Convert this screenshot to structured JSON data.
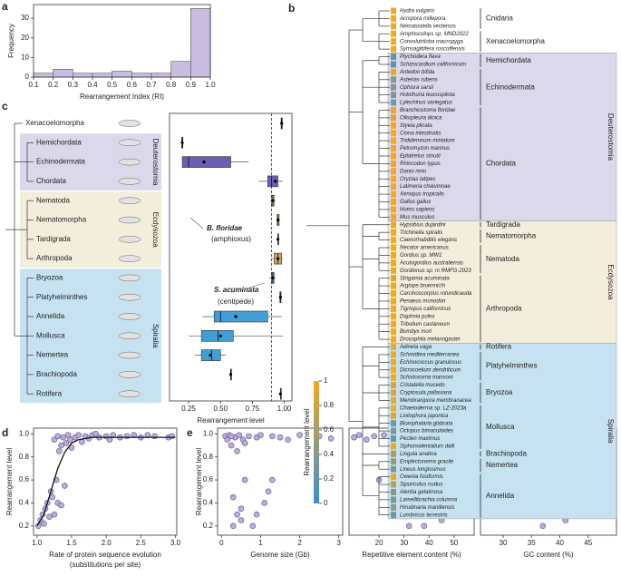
{
  "chart_data": [
    {
      "type": "histogram",
      "label": "a",
      "xlabel": "Rearrangement Index (RI)",
      "ylabel": "Frequency",
      "color": "#c8bde0",
      "bins": [
        0.1,
        0.2,
        0.3,
        0.4,
        0.5,
        0.6,
        0.7,
        0.8,
        0.9,
        1.0
      ],
      "counts": [
        2,
        4,
        2,
        2,
        3,
        2,
        2,
        8,
        35
      ],
      "xlim": [
        0.1,
        1.0
      ],
      "ylim": [
        0,
        37
      ],
      "xticks": [
        0.1,
        0.2,
        0.3,
        0.4,
        0.5,
        0.6,
        0.7,
        0.8,
        0.9,
        {
          "value": 1.0,
          "label": "1.0"
        }
      ],
      "yticks": [
        0,
        10,
        20,
        30
      ]
    },
    {
      "type": "box",
      "label": "c",
      "xlabel": "Rearrangement level",
      "xlim": [
        0.1,
        1.06
      ],
      "xticks": [
        {
          "value": 0.25,
          "label": "0.25"
        },
        {
          "value": 0.5,
          "label": "0.50"
        },
        {
          "value": 0.75,
          "label": "0.75"
        },
        {
          "value": 1.0,
          "label": "1.00"
        }
      ],
      "reference_line": 0.9,
      "annotations": [
        "B. floridae",
        "(amphioxus)",
        "S. acuminata",
        "(centipede)"
      ],
      "series": [
        {
          "name": null,
          "color": "#444444",
          "categories": [
            "Xenacoelomorpha"
          ],
          "min": [
            0.97
          ],
          "q1": [
            0.975
          ],
          "median": [
            0.98
          ],
          "q3": [
            0.985
          ],
          "max": [
            0.99
          ],
          "mean": [
            0.98
          ]
        },
        {
          "name": "Deuterostomia",
          "color": "#6a5fb0",
          "background": "#dcd8ec",
          "categories": [
            "Hemichordata",
            "Echinodermata",
            "Chordata"
          ],
          "min": [
            0.19,
            0.2,
            0.8
          ],
          "q1": [
            0.195,
            0.2,
            0.87
          ],
          "median": [
            0.2,
            0.25,
            0.9
          ],
          "q3": [
            0.205,
            0.58,
            0.95
          ],
          "max": [
            0.21,
            0.72,
            0.99
          ],
          "mean": [
            0.2,
            0.37,
            0.93
          ]
        },
        {
          "name": "Ecdysozoa",
          "color": "#c9a85c",
          "background": "#f3eedc",
          "categories": [
            "Nematoda",
            "Nematomorpha",
            "Tardigrada",
            "Arthropoda"
          ],
          "min": [
            0.89,
            0.94,
            0.95,
            0.9
          ],
          "q1": [
            0.9,
            0.945,
            0.95,
            0.92
          ],
          "median": [
            0.91,
            0.95,
            0.95,
            0.95
          ],
          "q3": [
            0.92,
            0.96,
            0.95,
            0.98
          ],
          "max": [
            0.93,
            0.965,
            0.95,
            0.99
          ],
          "mean": [
            0.91,
            0.95,
            0.95,
            0.95
          ]
        },
        {
          "name": "Spiralia",
          "color": "#3f9fd6",
          "background": "#c6e2f1",
          "categories": [
            "Bryozoa",
            "Platyhelminthes",
            "Annelida",
            "Mollusca",
            "Nemertea",
            "Brachiopoda",
            "Rotifera"
          ],
          "min": [
            0.88,
            0.96,
            0.36,
            0.25,
            0.3,
            0.58,
            0.97
          ],
          "q1": [
            0.9,
            0.965,
            0.45,
            0.35,
            0.35,
            0.58,
            0.97
          ],
          "median": [
            0.91,
            0.97,
            0.5,
            0.48,
            0.43,
            0.58,
            0.97
          ],
          "q3": [
            0.92,
            0.975,
            0.87,
            0.6,
            0.5,
            0.58,
            0.97
          ],
          "max": [
            0.93,
            0.98,
            0.98,
            0.99,
            0.54,
            0.58,
            0.97
          ],
          "mean": [
            0.91,
            0.97,
            0.62,
            0.5,
            0.42,
            0.58,
            0.97
          ]
        }
      ]
    },
    {
      "type": "scatter",
      "label": "d",
      "xlabel": [
        "Rate of protein sequence evolution",
        "(substitutions per site)"
      ],
      "ylabel": "Rearrangement level",
      "color": "#b9addb",
      "x": [
        1.02,
        1.05,
        1.08,
        1.1,
        1.12,
        1.15,
        1.18,
        1.2,
        1.22,
        1.25,
        1.25,
        1.28,
        1.3,
        1.3,
        1.32,
        1.35,
        1.35,
        1.38,
        1.4,
        1.42,
        1.45,
        1.48,
        1.5,
        1.55,
        1.6,
        1.65,
        1.7,
        1.75,
        1.8,
        1.85,
        1.9,
        2.0,
        2.05,
        2.1,
        2.2,
        2.3,
        2.4,
        2.5,
        2.6,
        2.7,
        2.9,
        2.95
      ],
      "y": [
        0.2,
        0.25,
        0.3,
        0.22,
        0.35,
        0.4,
        0.28,
        0.5,
        0.45,
        0.3,
        0.95,
        0.6,
        0.98,
        0.4,
        0.85,
        0.9,
        0.38,
        0.97,
        0.55,
        0.92,
        0.99,
        0.95,
        0.88,
        0.97,
        0.99,
        0.93,
        0.98,
        0.96,
        0.99,
        1.0,
        0.97,
        0.98,
        0.95,
        0.99,
        0.97,
        0.98,
        0.99,
        0.97,
        0.99,
        0.98,
        0.97,
        0.98
      ],
      "fit_x": [
        1.0,
        1.1,
        1.2,
        1.3,
        1.4,
        1.5,
        1.6,
        1.8,
        2.0,
        2.5,
        3.0
      ],
      "fit_y": [
        0.2,
        0.3,
        0.5,
        0.7,
        0.84,
        0.92,
        0.95,
        0.97,
        0.97,
        0.97,
        0.97
      ],
      "xlim": [
        0.95,
        3.02
      ],
      "ylim": [
        0.12,
        1.05
      ],
      "xticks": [
        {
          "value": 1.0,
          "label": "1.0"
        },
        1.5,
        {
          "value": 2.0,
          "label": "2.0"
        },
        2.5,
        {
          "value": 3.0,
          "label": "3.0"
        }
      ],
      "yticks": [
        0.2,
        0.4,
        0.6,
        0.8,
        {
          "value": 1.0,
          "label": "1.0"
        }
      ]
    },
    {
      "type": "scatter",
      "label": "e",
      "xlabel": "Genome size (Gb)",
      "ylabel": "Rearrangement level",
      "color": "#b9addb",
      "x": [
        0.1,
        0.15,
        0.2,
        0.25,
        0.3,
        0.35,
        0.4,
        0.45,
        0.5,
        0.55,
        0.6,
        0.7,
        0.8,
        0.9,
        1.0,
        1.1,
        1.2,
        1.3,
        1.5,
        1.7,
        2.0,
        2.5,
        2.8,
        0.3,
        0.5,
        0.6,
        0.9,
        1.3,
        0.25,
        0.4
      ],
      "y": [
        0.98,
        0.95,
        0.99,
        0.9,
        0.2,
        0.97,
        0.3,
        0.99,
        0.25,
        0.95,
        0.6,
        0.98,
        0.2,
        0.97,
        0.99,
        0.4,
        0.5,
        0.98,
        0.97,
        0.95,
        0.99,
        0.98,
        0.96,
        0.45,
        0.35,
        0.92,
        0.3,
        0.6,
        0.98,
        0.85
      ],
      "xlim": [
        -0.1,
        3.1
      ],
      "ylim": [
        0.12,
        1.05
      ],
      "xticks": [
        0,
        1,
        2,
        3
      ],
      "yticks": [
        0.2,
        0.4,
        0.6,
        0.8,
        {
          "value": 1.0,
          "label": "1.0"
        }
      ]
    },
    {
      "type": "scatter",
      "xlabel": "Repetitive element content (%)",
      "color": "#b9addb",
      "x": [
        10,
        12,
        15,
        18,
        20,
        22,
        25,
        27,
        28,
        30,
        32,
        33,
        35,
        36,
        38,
        40,
        42,
        44,
        45,
        47,
        50,
        52,
        55,
        30,
        35,
        40,
        45,
        48,
        25,
        38
      ],
      "y": [
        0.97,
        0.99,
        0.95,
        0.98,
        0.6,
        0.99,
        0.97,
        0.3,
        0.99,
        0.96,
        0.2,
        0.98,
        0.5,
        0.99,
        0.97,
        0.4,
        0.95,
        0.99,
        0.25,
        0.97,
        0.7,
        0.98,
        0.99,
        0.99,
        0.85,
        0.3,
        0.98,
        0.55,
        0.98,
        0.2
      ],
      "xlim": [
        8,
        58
      ],
      "ylim": [
        0.12,
        1.05
      ],
      "xticks": [
        20,
        30,
        40,
        50
      ]
    },
    {
      "type": "scatter",
      "xlabel": "GC content (%)",
      "color": "#b9addb",
      "x": [
        28,
        30,
        32,
        33,
        34,
        35,
        35,
        36,
        37,
        37,
        38,
        38,
        39,
        39,
        40,
        40,
        41,
        41,
        42,
        42,
        43,
        44,
        45,
        47,
        49,
        36,
        38,
        40,
        42,
        37
      ],
      "y": [
        0.98,
        0.99,
        0.97,
        0.95,
        0.99,
        0.3,
        0.98,
        0.5,
        0.99,
        0.2,
        0.97,
        0.65,
        0.99,
        0.35,
        0.98,
        0.85,
        0.25,
        0.99,
        0.55,
        0.97,
        0.99,
        0.96,
        0.98,
        0.97,
        0.99,
        0.4,
        0.99,
        0.6,
        0.3,
        0.98
      ],
      "xlim": [
        26,
        50
      ],
      "ylim": [
        0.12,
        1.05
      ],
      "xticks": [
        30,
        35,
        40,
        45
      ]
    }
  ],
  "panel_b": {
    "label": "b",
    "colorbar": {
      "label": "Rearrangement level",
      "range": [
        0,
        1
      ],
      "ticks": [
        0,
        0.2,
        0.4,
        0.6,
        0.8,
        1
      ],
      "colors": [
        "#3a8fd4",
        "#f4a81c"
      ]
    },
    "sections": [
      {
        "name": null,
        "background": "#ffffff",
        "clades": [
          {
            "name": "Cnidaria",
            "species": [
              "Hydra vulgaris",
              "Acropora millepora",
              "Nematostella vectensis"
            ],
            "levels": [
              1,
              1,
              1
            ]
          },
          {
            "name": "Xenacoelomorpha",
            "species": [
              "Amphiscolops sp. MND2022",
              "Convolutriloba macropyga",
              "Symsagittifera roscoffensis"
            ],
            "levels": [
              1,
              1,
              1
            ]
          }
        ]
      },
      {
        "name": "Deuterostomia",
        "background": "#dcd8ec",
        "clades": [
          {
            "name": "Hemichordata",
            "species": [
              "Ptychodera flava",
              "Schizocardium californicum"
            ],
            "levels": [
              0.2,
              0.2
            ]
          },
          {
            "name": "Echinodermata",
            "species": [
              "Antedon bifida",
              "Asterias rubens",
              "Ophiura sarsii",
              "Holothuria leucospilota",
              "Lytechinus variegatus"
            ],
            "levels": [
              0.95,
              0.4,
              0.4,
              0.35,
              0.3
            ]
          },
          {
            "name": "Chordata",
            "species": [
              "Branchiostoma floridae",
              "Oikopleura dioica",
              "Styela plicata",
              "Ciona intestinalis",
              "Trididemnum miniatum",
              "Petromyzon marinus",
              "Eptatretus stoutii",
              "Rhincodon typus",
              "Danio rerio",
              "Oryzias latipes",
              "Latimeria chalumnae",
              "Xenopus tropicalis",
              "Gallus gallus",
              "Homo sapiens",
              "Mus musculus"
            ],
            "levels": [
              0.95,
              0.9,
              1,
              1,
              1,
              1,
              1,
              1,
              1,
              1,
              1,
              1,
              1,
              1,
              1
            ]
          }
        ]
      },
      {
        "name": "Ecdysozoa",
        "background": "#f3eedc",
        "clades": [
          {
            "name": "Tardigrada",
            "species": [
              "Hypsibius dujardini"
            ],
            "levels": [
              1
            ]
          },
          {
            "name": "Nematomorpha",
            "species": [
              "Trichinella spiralis",
              "Caenorhabditis elegans"
            ],
            "levels": [
              1,
              1
            ]
          },
          {
            "name": "Nematoda",
            "species": [
              "Necator americanus",
              "Gordius sp. MW1",
              "Acutogordius australiensis",
              "Gordionus sp. m RMFG-2023"
            ],
            "levels": [
              1,
              1,
              1,
              1
            ]
          },
          {
            "name": "Arthropoda",
            "species": [
              "Strigamia acuminata",
              "Argiope bruennichi",
              "Carcinoscorpius rotundicauda",
              "Penaeus monodon",
              "Tigriopus californicus",
              "Daphnia pulex",
              "Tribolium castaneum",
              "Bombyx mori",
              "Drosophila melanogaster"
            ],
            "levels": [
              0.9,
              1,
              1,
              1,
              1,
              1,
              1,
              1,
              1
            ]
          }
        ]
      },
      {
        "name": "Spiralia",
        "background": "#c6e2f1",
        "clades": [
          {
            "name": "Rotifera",
            "species": [
              "Adineta vaga"
            ],
            "levels": [
              1
            ]
          },
          {
            "name": "Platyhelminthes",
            "species": [
              "Schmidtea mediterranea",
              "Echinococcus granulosus",
              "Dicrocoelium dendriticum",
              "Schistosoma mansoni"
            ],
            "levels": [
              1,
              1,
              1,
              1
            ]
          },
          {
            "name": "Bryozoa",
            "species": [
              "Cristatella mucedo",
              "Cryptosula pallasiana",
              "Membranipora membranacea"
            ],
            "levels": [
              0.85,
              0.9,
              0.95
            ]
          },
          {
            "name": "Mollusca",
            "species": [
              "Chaetoderma sp. LZ-2023a",
              "Lioliophura japonica",
              "Biomphalaria glabrata",
              "Octopus bimaculoides",
              "Pecten maximus",
              "Siphonodentalium dalli"
            ],
            "levels": [
              1,
              0.9,
              0.3,
              0.35,
              0.25,
              0.95
            ]
          },
          {
            "name": "Brachiopoda",
            "species": [
              "Lingula anatina"
            ],
            "levels": [
              0.6
            ]
          },
          {
            "name": "Nemertea",
            "species": [
              "Emplectonema gracile",
              "Lineus longissimus"
            ],
            "levels": [
              0.5,
              0.35
            ]
          },
          {
            "name": "Annelida",
            "species": [
              "Owenia fusiformis",
              "Sipunculus nudus",
              "Alentia gelatinosa",
              "Lamellibrachia columna",
              "Hirudinaria manillensis",
              "Lumbricus terrestris"
            ],
            "levels": [
              0.95,
              0.7,
              0.4,
              0.35,
              0.45,
              0.3
            ]
          }
        ]
      }
    ]
  }
}
